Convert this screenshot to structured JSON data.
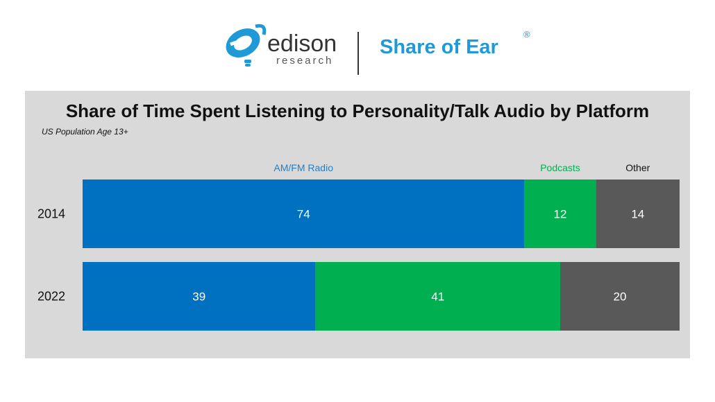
{
  "header": {
    "brand_name": "edison",
    "brand_sub": "research",
    "product_name": "Share of Ear",
    "reg_mark": "®"
  },
  "colors": {
    "am_fm_radio": "#0070c0",
    "podcasts": "#00b050",
    "other": "#595959",
    "panel_bg": "#d9d9d9",
    "brand_blue": "#1f9ad6"
  },
  "chart_data": {
    "type": "bar",
    "orientation": "horizontal",
    "stacked": true,
    "title": "Share of Time Spent Listening to Personality/Talk Audio by Platform",
    "subtitle": "US Population Age 13+",
    "categories": [
      "2014",
      "2022"
    ],
    "series": [
      {
        "name": "AM/FM Radio",
        "color": "#0070c0",
        "label_color": "#1f7fc8",
        "values": [
          74,
          39
        ]
      },
      {
        "name": "Podcasts",
        "color": "#00b050",
        "label_color": "#00b050",
        "values": [
          12,
          41
        ]
      },
      {
        "name": "Other",
        "color": "#595959",
        "label_color": "#111111",
        "values": [
          14,
          20
        ]
      }
    ],
    "xlim": [
      0,
      100
    ],
    "grid": false,
    "legend": "series names above the first bar"
  }
}
